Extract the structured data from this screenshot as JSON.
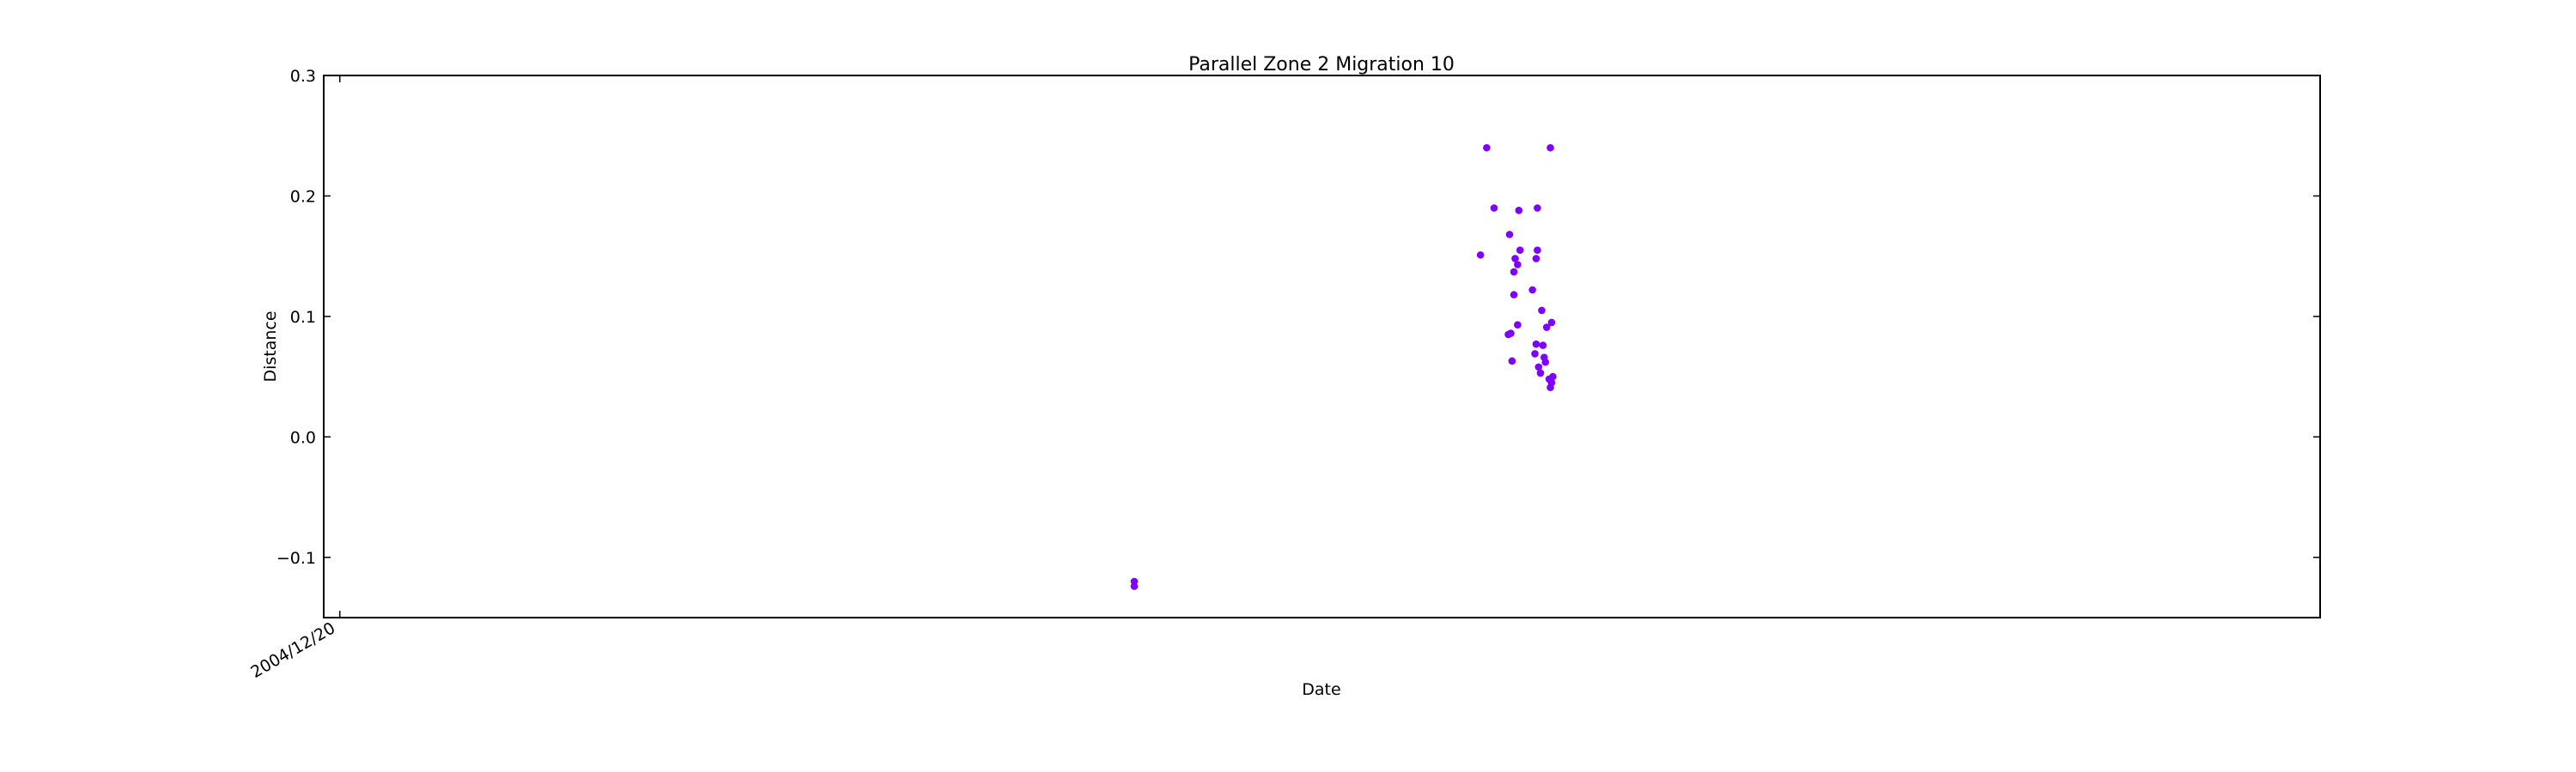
{
  "chart_data": {
    "type": "scatter",
    "title": "Parallel Zone 2 Migration 10",
    "xlabel": "Date",
    "ylabel": "Distance",
    "ylim": [
      -0.15,
      0.3
    ],
    "yticks": [
      -0.1,
      0.0,
      0.1,
      0.2,
      0.3
    ],
    "ytick_labels": [
      "−0.1",
      "0.0",
      "0.1",
      "0.2",
      "0.3"
    ],
    "xlim": [
      "2004-11-24",
      "2013-09-27"
    ],
    "xticks": [
      "2004-12-20"
    ],
    "xtick_labels": [
      "2004/12/20"
    ],
    "grid": false,
    "marker_color": "#7f00ff",
    "points": [
      {
        "x": "2008-06-27",
        "y": -0.12
      },
      {
        "x": "2008-06-27",
        "y": -0.124
      },
      {
        "x": "2010-01-18",
        "y": 0.24
      },
      {
        "x": "2010-05-01",
        "y": 0.24
      },
      {
        "x": "2010-01-30",
        "y": 0.19
      },
      {
        "x": "2010-03-11",
        "y": 0.188
      },
      {
        "x": "2010-04-10",
        "y": 0.19
      },
      {
        "x": "2010-02-24",
        "y": 0.168
      },
      {
        "x": "2010-01-08",
        "y": 0.151
      },
      {
        "x": "2010-03-13",
        "y": 0.155
      },
      {
        "x": "2010-04-10",
        "y": 0.155
      },
      {
        "x": "2010-03-05",
        "y": 0.148
      },
      {
        "x": "2010-04-08",
        "y": 0.148
      },
      {
        "x": "2010-03-09",
        "y": 0.143
      },
      {
        "x": "2010-03-03",
        "y": 0.137
      },
      {
        "x": "2010-04-02",
        "y": 0.122
      },
      {
        "x": "2010-03-03",
        "y": 0.118
      },
      {
        "x": "2010-04-17",
        "y": 0.105
      },
      {
        "x": "2010-05-03",
        "y": 0.095
      },
      {
        "x": "2010-03-09",
        "y": 0.093
      },
      {
        "x": "2010-04-25",
        "y": 0.091
      },
      {
        "x": "2010-02-26",
        "y": 0.086
      },
      {
        "x": "2010-02-22",
        "y": 0.085
      },
      {
        "x": "2010-04-08",
        "y": 0.077
      },
      {
        "x": "2010-04-19",
        "y": 0.076
      },
      {
        "x": "2010-04-06",
        "y": 0.069
      },
      {
        "x": "2010-04-21",
        "y": 0.066
      },
      {
        "x": "2010-04-23",
        "y": 0.062
      },
      {
        "x": "2010-02-28",
        "y": 0.063
      },
      {
        "x": "2010-04-12",
        "y": 0.058
      },
      {
        "x": "2010-04-15",
        "y": 0.053
      },
      {
        "x": "2010-05-05",
        "y": 0.05
      },
      {
        "x": "2010-04-29",
        "y": 0.048
      },
      {
        "x": "2010-05-03",
        "y": 0.045
      },
      {
        "x": "2010-05-01",
        "y": 0.041
      }
    ]
  }
}
